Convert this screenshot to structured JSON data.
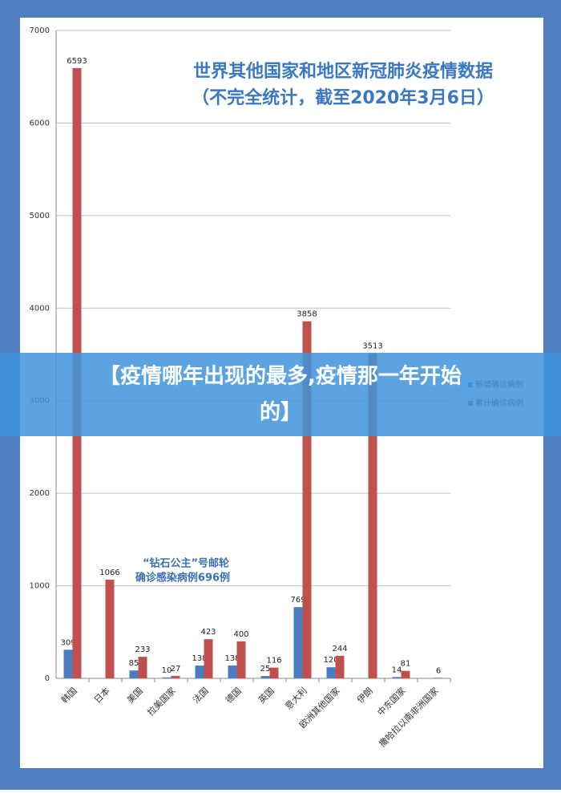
{
  "chart_data": {
    "type": "bar",
    "title": [
      "世界其他国家和地区新冠肺炎疫情数据",
      "（不完全统计，截至2020年3月6日）"
    ],
    "annotation": [
      "“钻石公主”号邮轮",
      "确诊感染病例696例"
    ],
    "categories": [
      "韩国",
      "日本",
      "美国",
      "拉美国家",
      "法国",
      "德国",
      "英国",
      "意大利",
      "欧洲其他国家",
      "伊朗",
      "中东国家",
      "撒哈拉以南非洲国家"
    ],
    "series": [
      {
        "name": "新增确诊病例",
        "color": "#4a7cc0",
        "values": [
          309,
          null,
          85,
          10,
          138,
          138,
          25,
          769,
          120,
          null,
          14,
          null
        ]
      },
      {
        "name": "累计确诊病例",
        "color": "#c0504d",
        "values": [
          6593,
          1066,
          233,
          27,
          423,
          400,
          116,
          3858,
          244,
          3513,
          81,
          6
        ]
      }
    ],
    "ylim": [
      0,
      7000
    ],
    "yticks": [
      0,
      1000,
      2000,
      3000,
      4000,
      5000,
      6000,
      7000
    ],
    "grid": true
  },
  "banner": {
    "text": [
      "【疫情哪年出现的最多,疫情那一年开始",
      "的】"
    ]
  }
}
